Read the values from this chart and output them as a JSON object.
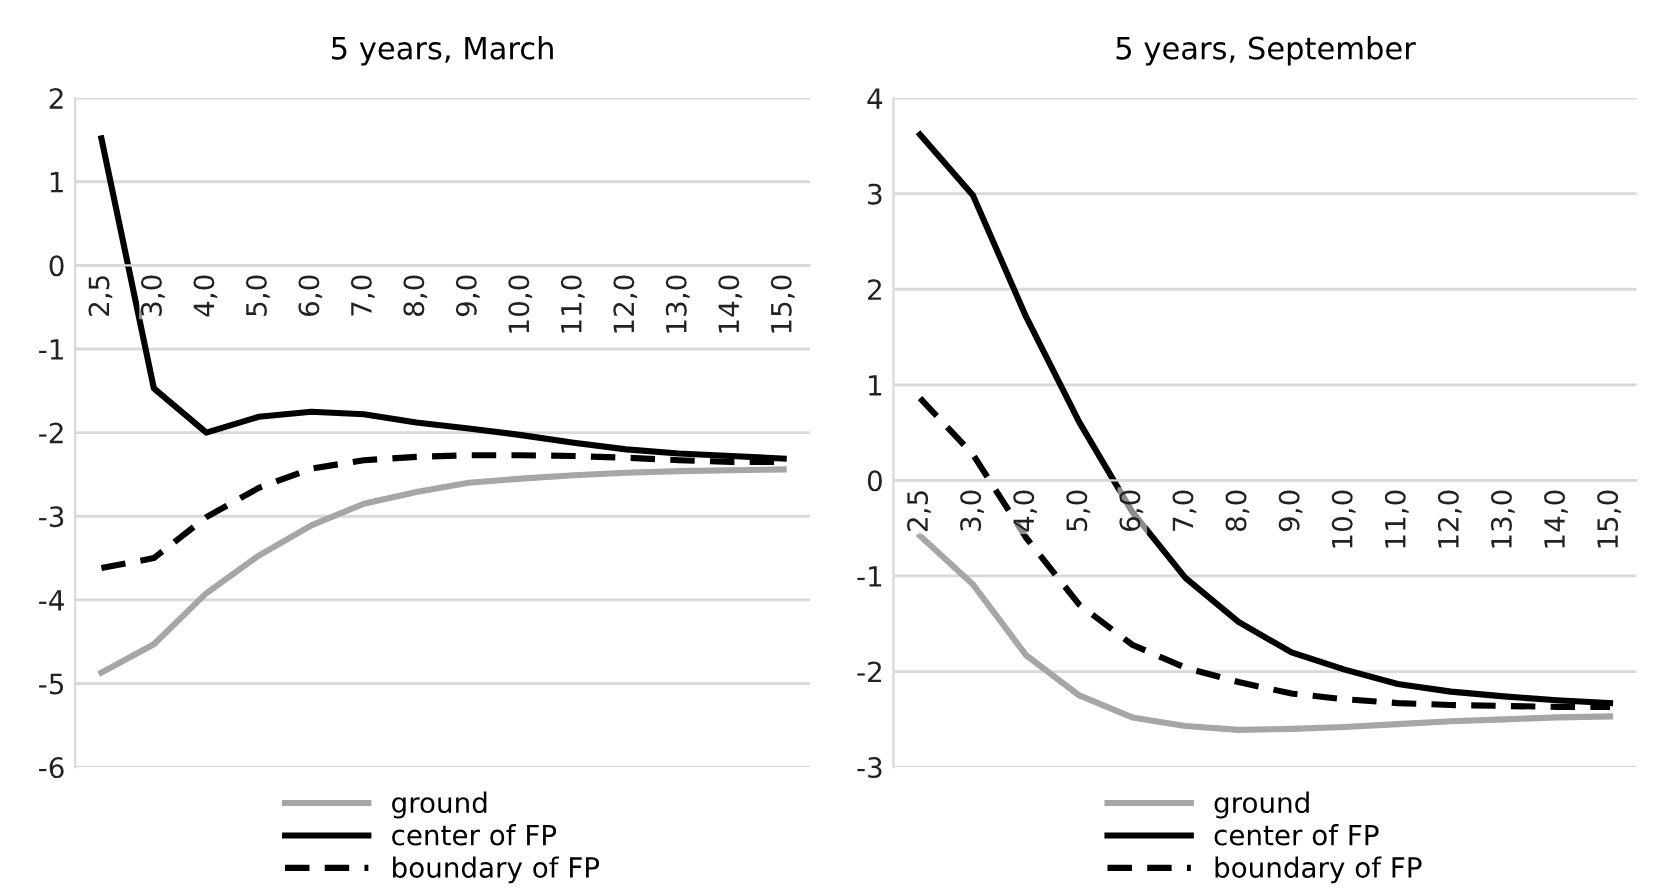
{
  "chart_data": [
    {
      "type": "line",
      "title": "5 years, March",
      "categories": [
        "2,5",
        "3,0",
        "4,0",
        "5,0",
        "6,0",
        "7,0",
        "8,0",
        "9,0",
        "10,0",
        "11,0",
        "12,0",
        "13,0",
        "14,0",
        "15,0"
      ],
      "series": [
        {
          "name": "ground",
          "color": "#a6a6a6",
          "line_style": "solid",
          "values": [
            -4.87,
            -4.53,
            -3.92,
            -3.47,
            -3.11,
            -2.85,
            -2.71,
            -2.6,
            -2.55,
            -2.51,
            -2.48,
            -2.46,
            -2.45,
            -2.44
          ]
        },
        {
          "name": "center of FP",
          "color": "#000000",
          "line_style": "solid",
          "values": [
            1.52,
            -1.47,
            -2.0,
            -1.81,
            -1.75,
            -1.78,
            -1.88,
            -1.95,
            -2.03,
            -2.12,
            -2.2,
            -2.25,
            -2.28,
            -2.31
          ]
        },
        {
          "name": "boundary of FP",
          "color": "#000000",
          "line_style": "dashed",
          "values": [
            -3.62,
            -3.5,
            -3.01,
            -2.66,
            -2.43,
            -2.33,
            -2.29,
            -2.27,
            -2.27,
            -2.28,
            -2.3,
            -2.33,
            -2.35,
            -2.35
          ]
        }
      ],
      "ylim": [
        -6,
        2
      ],
      "yticks": [
        -6,
        -5,
        -4,
        -3,
        -2,
        -1,
        0,
        1,
        2
      ],
      "grid": "y",
      "legend": "bottom"
    },
    {
      "type": "line",
      "title": "5 years, September",
      "categories": [
        "2,5",
        "3,0",
        "4,0",
        "5,0",
        "6,0",
        "7,0",
        "8,0",
        "9,0",
        "10,0",
        "11,0",
        "12,0",
        "13,0",
        "14,0",
        "15,0"
      ],
      "series": [
        {
          "name": "ground",
          "color": "#a6a6a6",
          "line_style": "solid",
          "values": [
            -0.58,
            -1.09,
            -1.83,
            -2.25,
            -2.48,
            -2.57,
            -2.61,
            -2.6,
            -2.58,
            -2.55,
            -2.52,
            -2.5,
            -2.48,
            -2.47
          ]
        },
        {
          "name": "center of FP",
          "color": "#000000",
          "line_style": "solid",
          "values": [
            3.62,
            2.98,
            1.71,
            0.61,
            -0.33,
            -1.02,
            -1.48,
            -1.8,
            -1.98,
            -2.13,
            -2.21,
            -2.26,
            -2.3,
            -2.33
          ]
        },
        {
          "name": "boundary of FP",
          "color": "#000000",
          "line_style": "dashed",
          "values": [
            0.86,
            0.27,
            -0.6,
            -1.3,
            -1.72,
            -1.96,
            -2.11,
            -2.23,
            -2.29,
            -2.33,
            -2.35,
            -2.36,
            -2.37,
            -2.37
          ]
        }
      ],
      "ylim": [
        -3,
        4
      ],
      "yticks": [
        -3,
        -2,
        -1,
        0,
        1,
        2,
        3,
        4
      ],
      "grid": "y",
      "legend": "bottom"
    }
  ]
}
